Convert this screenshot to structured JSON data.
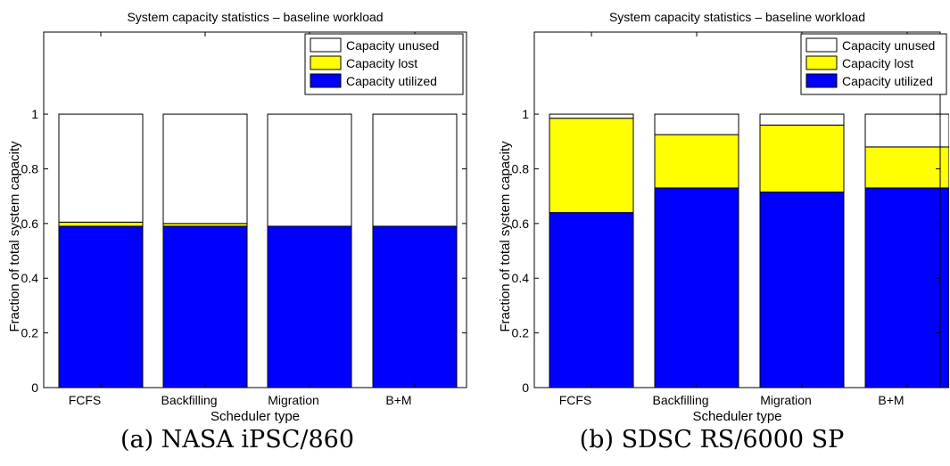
{
  "colors": {
    "utilized": "#0000ff",
    "lost": "#ffff00",
    "unused": "#ffffff",
    "axis": "#000000"
  },
  "chart_data": [
    {
      "type": "bar",
      "stacked": true,
      "title": "System capacity statistics – baseline workload",
      "xlabel": "Scheduler type",
      "ylabel": "Fraction of total system capacity",
      "caption": "(a) NASA iPSC/860",
      "categories": [
        "FCFS",
        "Backfilling",
        "Migration",
        "B+M"
      ],
      "ylim": [
        0,
        1.3
      ],
      "yticks": [
        0,
        0.2,
        0.4,
        0.6,
        0.8,
        1
      ],
      "ytick_labels": [
        "0",
        "0.2",
        "0.4",
        "0.6",
        "0.8",
        "1"
      ],
      "grid": false,
      "legend_position": "top-right",
      "series": [
        {
          "name": "Capacity utilized",
          "color_key": "utilized",
          "values": [
            0.59,
            0.59,
            0.59,
            0.59
          ]
        },
        {
          "name": "Capacity lost",
          "color_key": "lost",
          "values": [
            0.015,
            0.01,
            0.0,
            0.0
          ]
        },
        {
          "name": "Capacity unused",
          "color_key": "unused",
          "values": [
            0.395,
            0.4,
            0.41,
            0.41
          ]
        }
      ]
    },
    {
      "type": "bar",
      "stacked": true,
      "title": "System capacity statistics – baseline workload",
      "xlabel": "Scheduler type",
      "ylabel": "Fraction of total system capacity",
      "caption": "(b) SDSC RS/6000 SP",
      "categories": [
        "FCFS",
        "Backfilling",
        "Migration",
        "B+M"
      ],
      "ylim": [
        0,
        1.3
      ],
      "yticks": [
        0,
        0.2,
        0.4,
        0.6,
        0.8,
        1
      ],
      "ytick_labels": [
        "0",
        "0.2",
        "0.4",
        "0.6",
        "0.8",
        "1"
      ],
      "grid": false,
      "legend_position": "top-right",
      "series": [
        {
          "name": "Capacity utilized",
          "color_key": "utilized",
          "values": [
            0.64,
            0.73,
            0.715,
            0.73
          ]
        },
        {
          "name": "Capacity lost",
          "color_key": "lost",
          "values": [
            0.345,
            0.195,
            0.245,
            0.15
          ]
        },
        {
          "name": "Capacity unused",
          "color_key": "unused",
          "values": [
            0.015,
            0.075,
            0.04,
            0.12
          ]
        }
      ]
    }
  ]
}
